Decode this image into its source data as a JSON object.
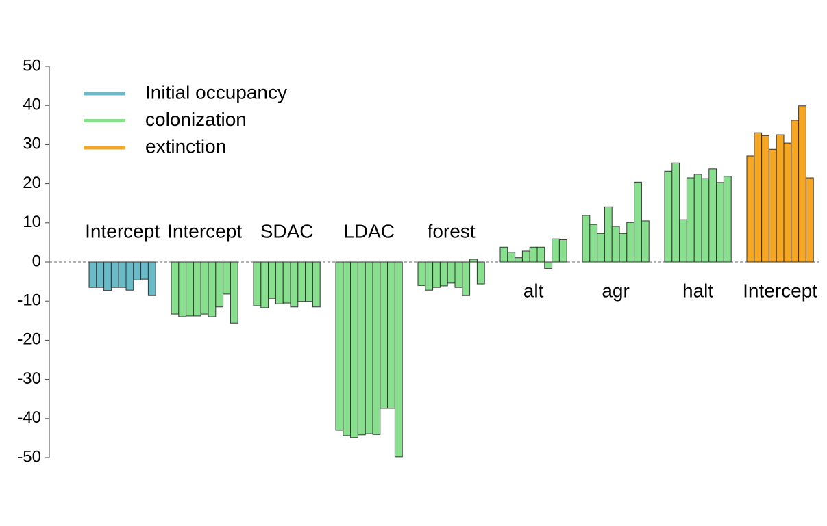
{
  "chart_data": {
    "type": "grouped-bar",
    "ylim": [
      -50,
      50
    ],
    "yticks": [
      -50,
      -40,
      -30,
      -20,
      -10,
      0,
      10,
      20,
      30,
      40,
      50
    ],
    "legend": "upper left",
    "series": [
      {
        "name": "Initial occupancy",
        "color": "#6bbac8",
        "groups": [
          {
            "label": "Intercept",
            "values": [
              -6.5,
              -6.5,
              -7.3,
              -6.5,
              -6.5,
              -7.2,
              -4.6,
              -4.4,
              -8.6
            ]
          }
        ]
      },
      {
        "name": "colonization",
        "color": "#88e08f",
        "groups": [
          {
            "label": "Intercept",
            "values": [
              -13.3,
              -14,
              -13.8,
              -13.8,
              -13.3,
              -14,
              -11.5,
              -8.2,
              -15.6
            ]
          },
          {
            "label": "SDAC",
            "values": [
              -11.2,
              -11.7,
              -9.3,
              -10.7,
              -10.5,
              -11.5,
              -10.1,
              -10.1,
              -11.5
            ]
          },
          {
            "label": "LDAC",
            "values": [
              -43,
              -44.4,
              -44.9,
              -44.2,
              -43.9,
              -44.1,
              -37.4,
              -37.4,
              -49.8
            ]
          },
          {
            "label": "forest",
            "values": [
              -6,
              -7.2,
              -6.5,
              -6.1,
              -5.4,
              -6.5,
              -8.6,
              0.7,
              -5.6
            ]
          },
          {
            "label": "alt",
            "values": [
              3.8,
              2.5,
              1.1,
              2.8,
              3.8,
              3.8,
              -1.7,
              5.9,
              5.7
            ]
          },
          {
            "label": "agr",
            "values": [
              11.9,
              9.6,
              7.3,
              14.1,
              9.1,
              7.3,
              10.1,
              20.4,
              10.5
            ]
          },
          {
            "label": "halt",
            "values": [
              23.2,
              25.3,
              10.8,
              21.5,
              22.4,
              21.3,
              23.8,
              20.3,
              21.9
            ]
          }
        ]
      },
      {
        "name": "extinction",
        "color": "#f5a623",
        "groups": [
          {
            "label": "Intercept",
            "values": [
              27.1,
              33,
              32.3,
              28.8,
              32.5,
              30.4,
              36.2,
              39.9,
              21.5
            ]
          }
        ]
      }
    ]
  }
}
